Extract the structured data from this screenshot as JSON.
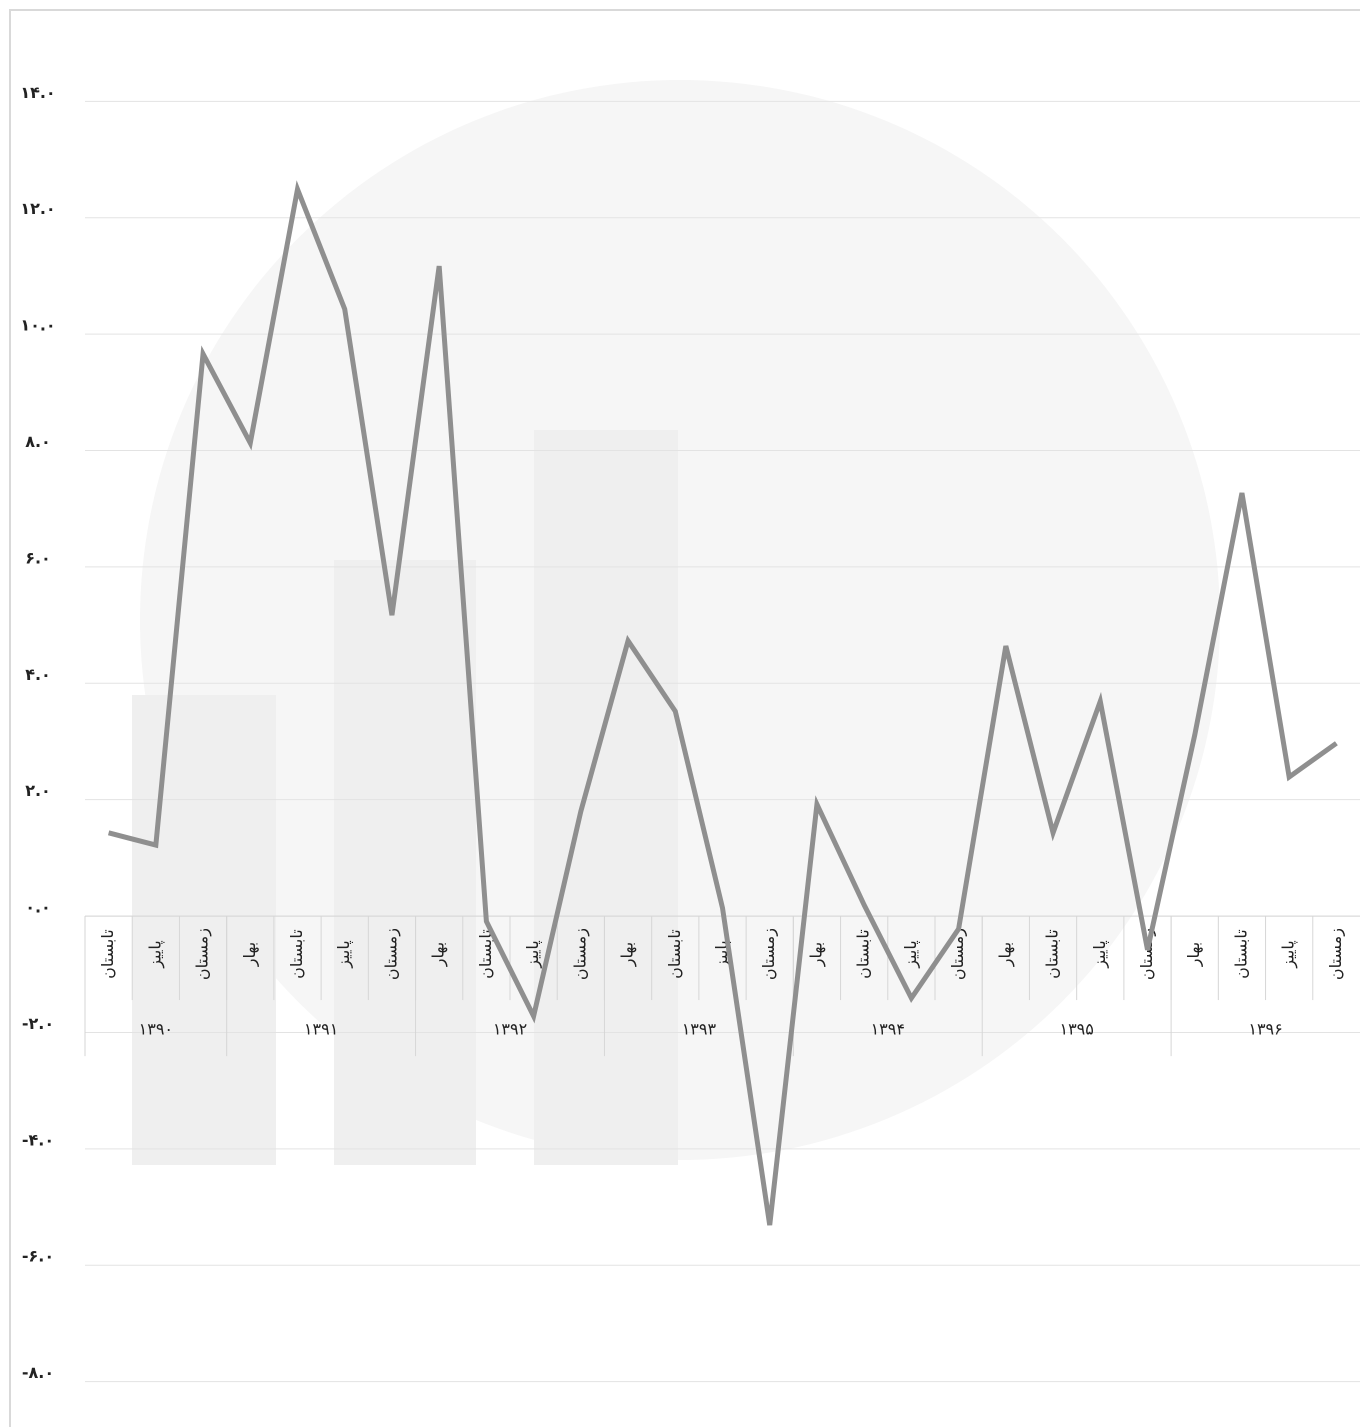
{
  "chart_data": {
    "type": "line",
    "categories": [
      "تابستان",
      "پاییز",
      "زمستان",
      "بهار",
      "تابستان",
      "پاییز",
      "زمستان",
      "بهار",
      "تابستان",
      "پاییز",
      "زمستان",
      "بهار",
      "تابستان",
      "پاییز",
      "زمستان",
      "بهار",
      "تابستان",
      "پاییز",
      "زمستان",
      "بهار",
      "تابستان",
      "پاییز",
      "زمستان",
      "بهار",
      "تابستان",
      "پاییز",
      "زمستان"
    ],
    "groups": [
      {
        "label": "۱۳۹۰",
        "count": 3
      },
      {
        "label": "۱۳۹۱",
        "count": 4
      },
      {
        "label": "۱۳۹۲",
        "count": 4
      },
      {
        "label": "۱۳۹۳",
        "count": 4
      },
      {
        "label": "۱۳۹۴",
        "count": 4
      },
      {
        "label": "۱۳۹۵",
        "count": 4
      },
      {
        "label": "۱۳۹۶",
        "count": 4
      }
    ],
    "series": [
      {
        "color": "#8f8f8f",
        "values": [
          1.43,
          1.22,
          9.66,
          8.13,
          12.49,
          10.43,
          5.17,
          11.17,
          -0.09,
          -1.72,
          1.8,
          4.73,
          3.52,
          0.14,
          -5.31,
          1.92,
          0.19,
          -1.41,
          -0.22,
          4.64,
          1.43,
          3.69,
          -0.58,
          3.11,
          7.27,
          2.39,
          2.97
        ]
      }
    ],
    "ylim": [
      -8.78,
      15.57
    ],
    "yticks": [
      {
        "value": 14,
        "label": "۱۴.۰"
      },
      {
        "value": 12,
        "label": "۱۲.۰"
      },
      {
        "value": 10,
        "label": "۱۰.۰"
      },
      {
        "value": 8,
        "label": "۸.۰"
      },
      {
        "value": 6,
        "label": "۶.۰"
      },
      {
        "value": 4,
        "label": "۴.۰"
      },
      {
        "value": 2,
        "label": "۲.۰"
      },
      {
        "value": 0,
        "label": "۰.۰"
      },
      {
        "value": -2,
        "label": "-۲.۰"
      },
      {
        "value": -4,
        "label": "-۴.۰"
      },
      {
        "value": -6,
        "label": "-۶.۰"
      },
      {
        "value": -8,
        "label": "-۸.۰"
      }
    ],
    "grid": true
  }
}
